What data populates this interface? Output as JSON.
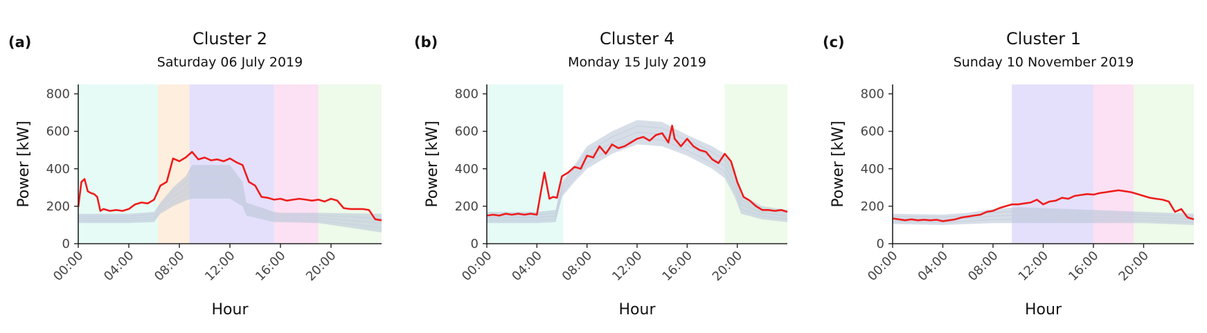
{
  "chart_data": [
    {
      "type": "line",
      "panel_label": "(a)",
      "title": "Cluster 2",
      "subtitle": "Saturday 06 July 2019",
      "xlabel": "Hour",
      "ylabel": "Power [kW]",
      "xlim": [
        0,
        24
      ],
      "ylim": [
        0,
        850
      ],
      "yticks": [
        0,
        200,
        400,
        600,
        800
      ],
      "xticks": [
        0,
        4,
        8,
        12,
        16,
        20
      ],
      "xtick_labels": [
        "00:00",
        "04:00",
        "08:00",
        "12:00",
        "16:00",
        "20:00"
      ],
      "bands": [
        {
          "start": 0,
          "end": 6.3,
          "color": "#e6fbf6"
        },
        {
          "start": 6.3,
          "end": 8.8,
          "color": "#fdeede"
        },
        {
          "start": 8.8,
          "end": 15.5,
          "color": "#e4e0fb"
        },
        {
          "start": 15.5,
          "end": 19.0,
          "color": "#fbe1f3"
        },
        {
          "start": 19.0,
          "end": 24,
          "color": "#eefaea"
        }
      ],
      "background_envelope": {
        "color": "#b7c2d6",
        "x": [
          0,
          4,
          6,
          6.5,
          7.5,
          8.5,
          9,
          12,
          13,
          13.3,
          15.5,
          16,
          19,
          24
        ],
        "upper": [
          160,
          160,
          170,
          220,
          300,
          360,
          420,
          420,
          330,
          220,
          170,
          165,
          165,
          160
        ],
        "lower": [
          110,
          110,
          115,
          160,
          200,
          230,
          240,
          240,
          200,
          150,
          115,
          115,
          110,
          60
        ]
      },
      "series": [
        {
          "color": "#ee1c1c",
          "x": [
            0,
            0.25,
            0.5,
            0.75,
            1,
            1.25,
            1.5,
            1.75,
            2,
            2.5,
            3,
            3.5,
            4,
            4.5,
            5,
            5.5,
            6,
            6.5,
            7,
            7.5,
            8,
            8.5,
            9,
            9.5,
            10,
            10.5,
            11,
            11.5,
            12,
            12.5,
            13,
            13.5,
            14,
            14.5,
            15,
            15.5,
            16,
            16.5,
            17,
            17.5,
            18,
            18.5,
            19,
            19.5,
            20,
            20.5,
            21,
            21.5,
            22,
            22.5,
            23,
            23.5,
            24
          ],
          "values": [
            195,
            330,
            345,
            280,
            270,
            265,
            250,
            175,
            185,
            175,
            180,
            175,
            185,
            210,
            220,
            215,
            235,
            310,
            330,
            455,
            440,
            460,
            490,
            450,
            460,
            445,
            450,
            440,
            455,
            435,
            420,
            330,
            310,
            250,
            245,
            235,
            240,
            230,
            235,
            240,
            235,
            230,
            235,
            225,
            240,
            230,
            190,
            185,
            185,
            185,
            180,
            130,
            125
          ]
        }
      ]
    },
    {
      "type": "line",
      "panel_label": "(b)",
      "title": "Cluster 4",
      "subtitle": "Monday 15 July 2019",
      "xlabel": "Hour",
      "ylabel": "Power [kW]",
      "xlim": [
        0,
        24
      ],
      "ylim": [
        0,
        850
      ],
      "yticks": [
        0,
        200,
        400,
        600,
        800
      ],
      "xticks": [
        0,
        4,
        8,
        12,
        16,
        20
      ],
      "xtick_labels": [
        "00:00",
        "04:00",
        "08:00",
        "12:00",
        "16:00",
        "20:00"
      ],
      "bands": [
        {
          "start": 0,
          "end": 6.1,
          "color": "#e6fbf6"
        },
        {
          "start": 19.0,
          "end": 24,
          "color": "#eefaea"
        }
      ],
      "background_envelope": {
        "color": "#b7c2d6",
        "x": [
          0,
          4,
          5.5,
          6,
          7,
          8,
          10,
          12,
          14,
          16,
          18,
          19,
          19.8,
          20.3,
          22,
          24
        ],
        "upper": [
          170,
          170,
          180,
          330,
          420,
          520,
          600,
          660,
          650,
          580,
          520,
          480,
          400,
          260,
          200,
          180
        ],
        "lower": [
          110,
          110,
          115,
          250,
          330,
          400,
          480,
          530,
          520,
          470,
          400,
          350,
          250,
          160,
          130,
          115
        ]
      },
      "series": [
        {
          "color": "#ee1c1c",
          "x": [
            0,
            0.5,
            1,
            1.5,
            2,
            2.5,
            3,
            3.5,
            4,
            4.3,
            4.6,
            5,
            5.3,
            5.6,
            6,
            6.5,
            7,
            7.5,
            8,
            8.5,
            9,
            9.5,
            10,
            10.5,
            11,
            11.5,
            12,
            12.5,
            13,
            13.5,
            14,
            14.5,
            14.8,
            15,
            15.5,
            16,
            16.5,
            17,
            17.5,
            18,
            18.5,
            19,
            19.5,
            20,
            20.5,
            21,
            21.5,
            22,
            22.5,
            23,
            23.5,
            24
          ],
          "values": [
            150,
            155,
            150,
            160,
            155,
            160,
            155,
            160,
            155,
            270,
            380,
            240,
            250,
            245,
            360,
            380,
            410,
            400,
            470,
            460,
            520,
            480,
            530,
            510,
            520,
            540,
            560,
            570,
            550,
            580,
            590,
            540,
            630,
            560,
            520,
            560,
            520,
            500,
            490,
            450,
            430,
            480,
            440,
            330,
            250,
            230,
            200,
            180,
            180,
            175,
            180,
            170
          ]
        }
      ]
    },
    {
      "type": "line",
      "panel_label": "(c)",
      "title": "Cluster 1",
      "subtitle": "Sunday 10 November 2019",
      "xlabel": "Hour",
      "ylabel": "Power [kW]",
      "xlim": [
        0,
        24
      ],
      "ylim": [
        0,
        850
      ],
      "yticks": [
        0,
        200,
        400,
        600,
        800
      ],
      "xticks": [
        0,
        4,
        8,
        12,
        16,
        20
      ],
      "xtick_labels": [
        "00:00",
        "04:00",
        "08:00",
        "12:00",
        "16:00",
        "20:00"
      ],
      "bands": [
        {
          "start": 9.5,
          "end": 16.0,
          "color": "#e4e0fb"
        },
        {
          "start": 16.0,
          "end": 19.2,
          "color": "#fbe1f3"
        },
        {
          "start": 19.2,
          "end": 24,
          "color": "#eefaea"
        }
      ],
      "background_envelope": {
        "color": "#b7c2d6",
        "x": [
          0,
          4,
          6,
          8,
          10,
          12,
          14,
          16,
          18,
          20,
          22,
          24
        ],
        "upper": [
          160,
          155,
          165,
          185,
          195,
          190,
          185,
          180,
          175,
          170,
          165,
          160
        ],
        "lower": [
          105,
          100,
          105,
          110,
          110,
          110,
          110,
          110,
          110,
          110,
          105,
          100
        ]
      },
      "series": [
        {
          "color": "#ee1c1c",
          "x": [
            0,
            0.5,
            1,
            1.5,
            2,
            2.5,
            3,
            3.5,
            4,
            4.5,
            5,
            5.5,
            6,
            6.5,
            7,
            7.5,
            8,
            8.5,
            9,
            9.5,
            10,
            10.5,
            11,
            11.5,
            12,
            12.5,
            13,
            13.5,
            14,
            14.5,
            15,
            15.5,
            16,
            16.5,
            17,
            17.5,
            18,
            18.5,
            19,
            19.5,
            20,
            20.5,
            21,
            21.5,
            22,
            22.5,
            23,
            23.5,
            24
          ],
          "values": [
            135,
            130,
            125,
            130,
            125,
            128,
            125,
            128,
            120,
            125,
            130,
            140,
            145,
            150,
            155,
            170,
            175,
            190,
            200,
            210,
            210,
            215,
            220,
            235,
            210,
            225,
            230,
            245,
            240,
            255,
            260,
            265,
            262,
            270,
            275,
            280,
            285,
            280,
            275,
            265,
            255,
            245,
            240,
            235,
            225,
            170,
            185,
            140,
            130
          ]
        }
      ]
    }
  ]
}
